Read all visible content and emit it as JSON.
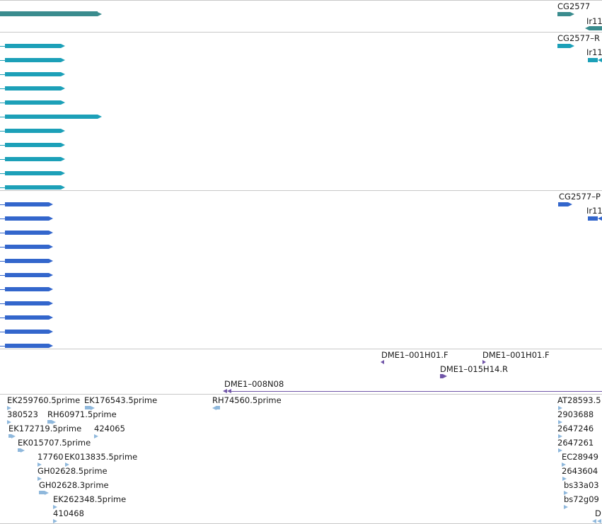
{
  "colors": {
    "gene": "#3a8c8e",
    "transcript": "#1ca0b8",
    "cds": "#3366cc",
    "clone": "#7055a8",
    "est": "#8fb8dc",
    "divider": "#c8c8c8"
  },
  "gene_track": {
    "labels": {
      "cg2577": "CG2577",
      "ir11": "Ir11"
    }
  },
  "transcript_track": {
    "labels": {
      "cg2577": "CG2577–R",
      "ir11": "Ir11"
    },
    "row_count": 11
  },
  "cds_track": {
    "labels": {
      "cg2577": "CG2577–P",
      "ir11": "Ir11"
    },
    "row_count": 11
  },
  "clone_track": {
    "labels": {
      "a": "DME1–001H01.F",
      "b": "DME1–001H01.F",
      "c": "DME1–015H14.R",
      "d": "DME1–008N08"
    }
  },
  "est_track": {
    "labels": {
      "ek259760": "EK259760.5prime",
      "ek176543": "EK176543.5prime",
      "rh74560": "RH74560.5prime",
      "at28593": "AT28593.5",
      "n380523": "380523",
      "rh60971": "RH60971.5prime",
      "n2903688": "2903688",
      "ek172719": "EK172719.5prime",
      "n424065": "424065",
      "n2647246": "2647246",
      "ek015707": "EK015707.5prime",
      "n2647261": "2647261",
      "n17760": "17760",
      "ek013835": "EK013835.5prime",
      "ec28949": "EC28949",
      "gh02628_5": "GH02628.5prime",
      "n2643604": "2643604",
      "gh02628_3": "GH02628.3prime",
      "bs33a03": "bs33a03",
      "ek262348": "EK262348.5prime",
      "bs72g09": "bs72g09",
      "n410468": "410468",
      "d": "D"
    }
  }
}
